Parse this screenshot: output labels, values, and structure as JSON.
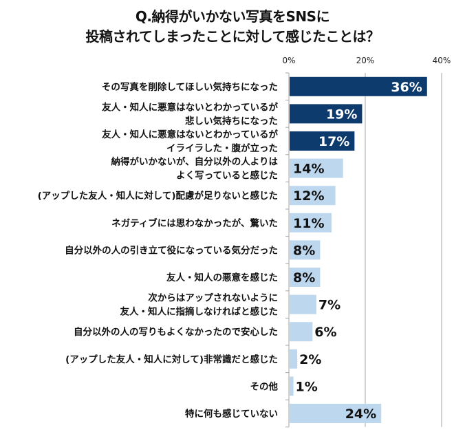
{
  "chart_data": {
    "type": "bar",
    "orientation": "horizontal",
    "title": [
      "Q.納得がいかない写真をSNSに",
      "投稿されてしまったことに対して感じたことは？"
    ],
    "xlim": [
      0,
      40
    ],
    "x_ticks": [
      "0%",
      "20%",
      "40%"
    ],
    "x_tick_values": [
      0,
      20,
      40
    ],
    "axis_position": "top",
    "grid": true,
    "categories": [
      [
        "その写真を削除してほしい気持ちになった"
      ],
      [
        "友人・知人に悪意はないとわかっているが",
        "悲しい気持ちになった"
      ],
      [
        "友人・知人に悪意はないとわかっているが",
        "イライラした・腹が立った"
      ],
      [
        "納得がいかないが、自分以外の人よりは",
        "よく写っていると感じた"
      ],
      [
        "(アップした友人・知人に対して)配慮が足りないと感じた"
      ],
      [
        "ネガティブには思わなかったが、驚いた"
      ],
      [
        "自分以外の人の引き立て役になっている気分だった"
      ],
      [
        "友人・知人の悪意を感じた"
      ],
      [
        "次からはアップされないように",
        "友人・知人に指摘しなければと感じた"
      ],
      [
        "自分以外の人の写りもよくなかったので安心した"
      ],
      [
        "(アップした友人・知人に対して)非常識だと感じた"
      ],
      [
        "その他"
      ],
      [
        "特に何も感じていない"
      ]
    ],
    "values": [
      36,
      19,
      17,
      14,
      12,
      11,
      8,
      8,
      7,
      6,
      2,
      1,
      24
    ],
    "value_labels": [
      "36%",
      "19%",
      "17%",
      "14%",
      "12%",
      "11%",
      "8%",
      "8%",
      "7%",
      "6%",
      "2%",
      "1%",
      "24%"
    ],
    "highlighted": [
      true,
      true,
      true,
      false,
      false,
      false,
      false,
      false,
      false,
      false,
      false,
      false,
      false
    ],
    "colors": {
      "highlight": "#0e3b6e",
      "normal": "#bdd7ee",
      "grid": "#a6a6a6"
    }
  }
}
